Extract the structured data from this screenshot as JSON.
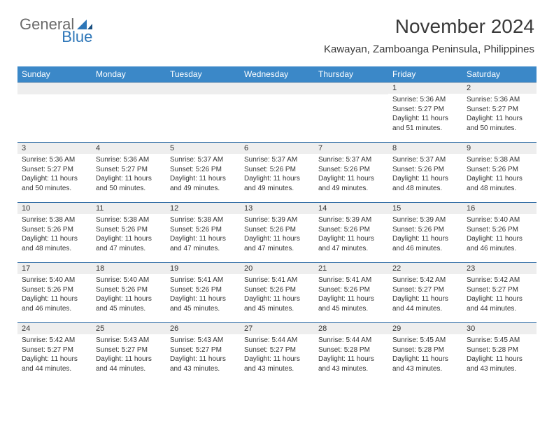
{
  "logo": {
    "text1": "General",
    "text2": "Blue"
  },
  "title": "November 2024",
  "location": "Kawayan, Zamboanga Peninsula, Philippines",
  "colors": {
    "header_bg": "#3b88c8",
    "header_text": "#ffffff",
    "daynum_bg": "#eeeeee",
    "border": "#2d6aa3",
    "body_text": "#333333",
    "logo_gray": "#6a6a6a",
    "logo_blue": "#2d76b8"
  },
  "day_headers": [
    "Sunday",
    "Monday",
    "Tuesday",
    "Wednesday",
    "Thursday",
    "Friday",
    "Saturday"
  ],
  "weeks": [
    [
      {
        "n": "",
        "sr": "",
        "ss": "",
        "dl": ""
      },
      {
        "n": "",
        "sr": "",
        "ss": "",
        "dl": ""
      },
      {
        "n": "",
        "sr": "",
        "ss": "",
        "dl": ""
      },
      {
        "n": "",
        "sr": "",
        "ss": "",
        "dl": ""
      },
      {
        "n": "",
        "sr": "",
        "ss": "",
        "dl": ""
      },
      {
        "n": "1",
        "sr": "Sunrise: 5:36 AM",
        "ss": "Sunset: 5:27 PM",
        "dl": "Daylight: 11 hours and 51 minutes."
      },
      {
        "n": "2",
        "sr": "Sunrise: 5:36 AM",
        "ss": "Sunset: 5:27 PM",
        "dl": "Daylight: 11 hours and 50 minutes."
      }
    ],
    [
      {
        "n": "3",
        "sr": "Sunrise: 5:36 AM",
        "ss": "Sunset: 5:27 PM",
        "dl": "Daylight: 11 hours and 50 minutes."
      },
      {
        "n": "4",
        "sr": "Sunrise: 5:36 AM",
        "ss": "Sunset: 5:27 PM",
        "dl": "Daylight: 11 hours and 50 minutes."
      },
      {
        "n": "5",
        "sr": "Sunrise: 5:37 AM",
        "ss": "Sunset: 5:26 PM",
        "dl": "Daylight: 11 hours and 49 minutes."
      },
      {
        "n": "6",
        "sr": "Sunrise: 5:37 AM",
        "ss": "Sunset: 5:26 PM",
        "dl": "Daylight: 11 hours and 49 minutes."
      },
      {
        "n": "7",
        "sr": "Sunrise: 5:37 AM",
        "ss": "Sunset: 5:26 PM",
        "dl": "Daylight: 11 hours and 49 minutes."
      },
      {
        "n": "8",
        "sr": "Sunrise: 5:37 AM",
        "ss": "Sunset: 5:26 PM",
        "dl": "Daylight: 11 hours and 48 minutes."
      },
      {
        "n": "9",
        "sr": "Sunrise: 5:38 AM",
        "ss": "Sunset: 5:26 PM",
        "dl": "Daylight: 11 hours and 48 minutes."
      }
    ],
    [
      {
        "n": "10",
        "sr": "Sunrise: 5:38 AM",
        "ss": "Sunset: 5:26 PM",
        "dl": "Daylight: 11 hours and 48 minutes."
      },
      {
        "n": "11",
        "sr": "Sunrise: 5:38 AM",
        "ss": "Sunset: 5:26 PM",
        "dl": "Daylight: 11 hours and 47 minutes."
      },
      {
        "n": "12",
        "sr": "Sunrise: 5:38 AM",
        "ss": "Sunset: 5:26 PM",
        "dl": "Daylight: 11 hours and 47 minutes."
      },
      {
        "n": "13",
        "sr": "Sunrise: 5:39 AM",
        "ss": "Sunset: 5:26 PM",
        "dl": "Daylight: 11 hours and 47 minutes."
      },
      {
        "n": "14",
        "sr": "Sunrise: 5:39 AM",
        "ss": "Sunset: 5:26 PM",
        "dl": "Daylight: 11 hours and 47 minutes."
      },
      {
        "n": "15",
        "sr": "Sunrise: 5:39 AM",
        "ss": "Sunset: 5:26 PM",
        "dl": "Daylight: 11 hours and 46 minutes."
      },
      {
        "n": "16",
        "sr": "Sunrise: 5:40 AM",
        "ss": "Sunset: 5:26 PM",
        "dl": "Daylight: 11 hours and 46 minutes."
      }
    ],
    [
      {
        "n": "17",
        "sr": "Sunrise: 5:40 AM",
        "ss": "Sunset: 5:26 PM",
        "dl": "Daylight: 11 hours and 46 minutes."
      },
      {
        "n": "18",
        "sr": "Sunrise: 5:40 AM",
        "ss": "Sunset: 5:26 PM",
        "dl": "Daylight: 11 hours and 45 minutes."
      },
      {
        "n": "19",
        "sr": "Sunrise: 5:41 AM",
        "ss": "Sunset: 5:26 PM",
        "dl": "Daylight: 11 hours and 45 minutes."
      },
      {
        "n": "20",
        "sr": "Sunrise: 5:41 AM",
        "ss": "Sunset: 5:26 PM",
        "dl": "Daylight: 11 hours and 45 minutes."
      },
      {
        "n": "21",
        "sr": "Sunrise: 5:41 AM",
        "ss": "Sunset: 5:26 PM",
        "dl": "Daylight: 11 hours and 45 minutes."
      },
      {
        "n": "22",
        "sr": "Sunrise: 5:42 AM",
        "ss": "Sunset: 5:27 PM",
        "dl": "Daylight: 11 hours and 44 minutes."
      },
      {
        "n": "23",
        "sr": "Sunrise: 5:42 AM",
        "ss": "Sunset: 5:27 PM",
        "dl": "Daylight: 11 hours and 44 minutes."
      }
    ],
    [
      {
        "n": "24",
        "sr": "Sunrise: 5:42 AM",
        "ss": "Sunset: 5:27 PM",
        "dl": "Daylight: 11 hours and 44 minutes."
      },
      {
        "n": "25",
        "sr": "Sunrise: 5:43 AM",
        "ss": "Sunset: 5:27 PM",
        "dl": "Daylight: 11 hours and 44 minutes."
      },
      {
        "n": "26",
        "sr": "Sunrise: 5:43 AM",
        "ss": "Sunset: 5:27 PM",
        "dl": "Daylight: 11 hours and 43 minutes."
      },
      {
        "n": "27",
        "sr": "Sunrise: 5:44 AM",
        "ss": "Sunset: 5:27 PM",
        "dl": "Daylight: 11 hours and 43 minutes."
      },
      {
        "n": "28",
        "sr": "Sunrise: 5:44 AM",
        "ss": "Sunset: 5:28 PM",
        "dl": "Daylight: 11 hours and 43 minutes."
      },
      {
        "n": "29",
        "sr": "Sunrise: 5:45 AM",
        "ss": "Sunset: 5:28 PM",
        "dl": "Daylight: 11 hours and 43 minutes."
      },
      {
        "n": "30",
        "sr": "Sunrise: 5:45 AM",
        "ss": "Sunset: 5:28 PM",
        "dl": "Daylight: 11 hours and 43 minutes."
      }
    ]
  ]
}
